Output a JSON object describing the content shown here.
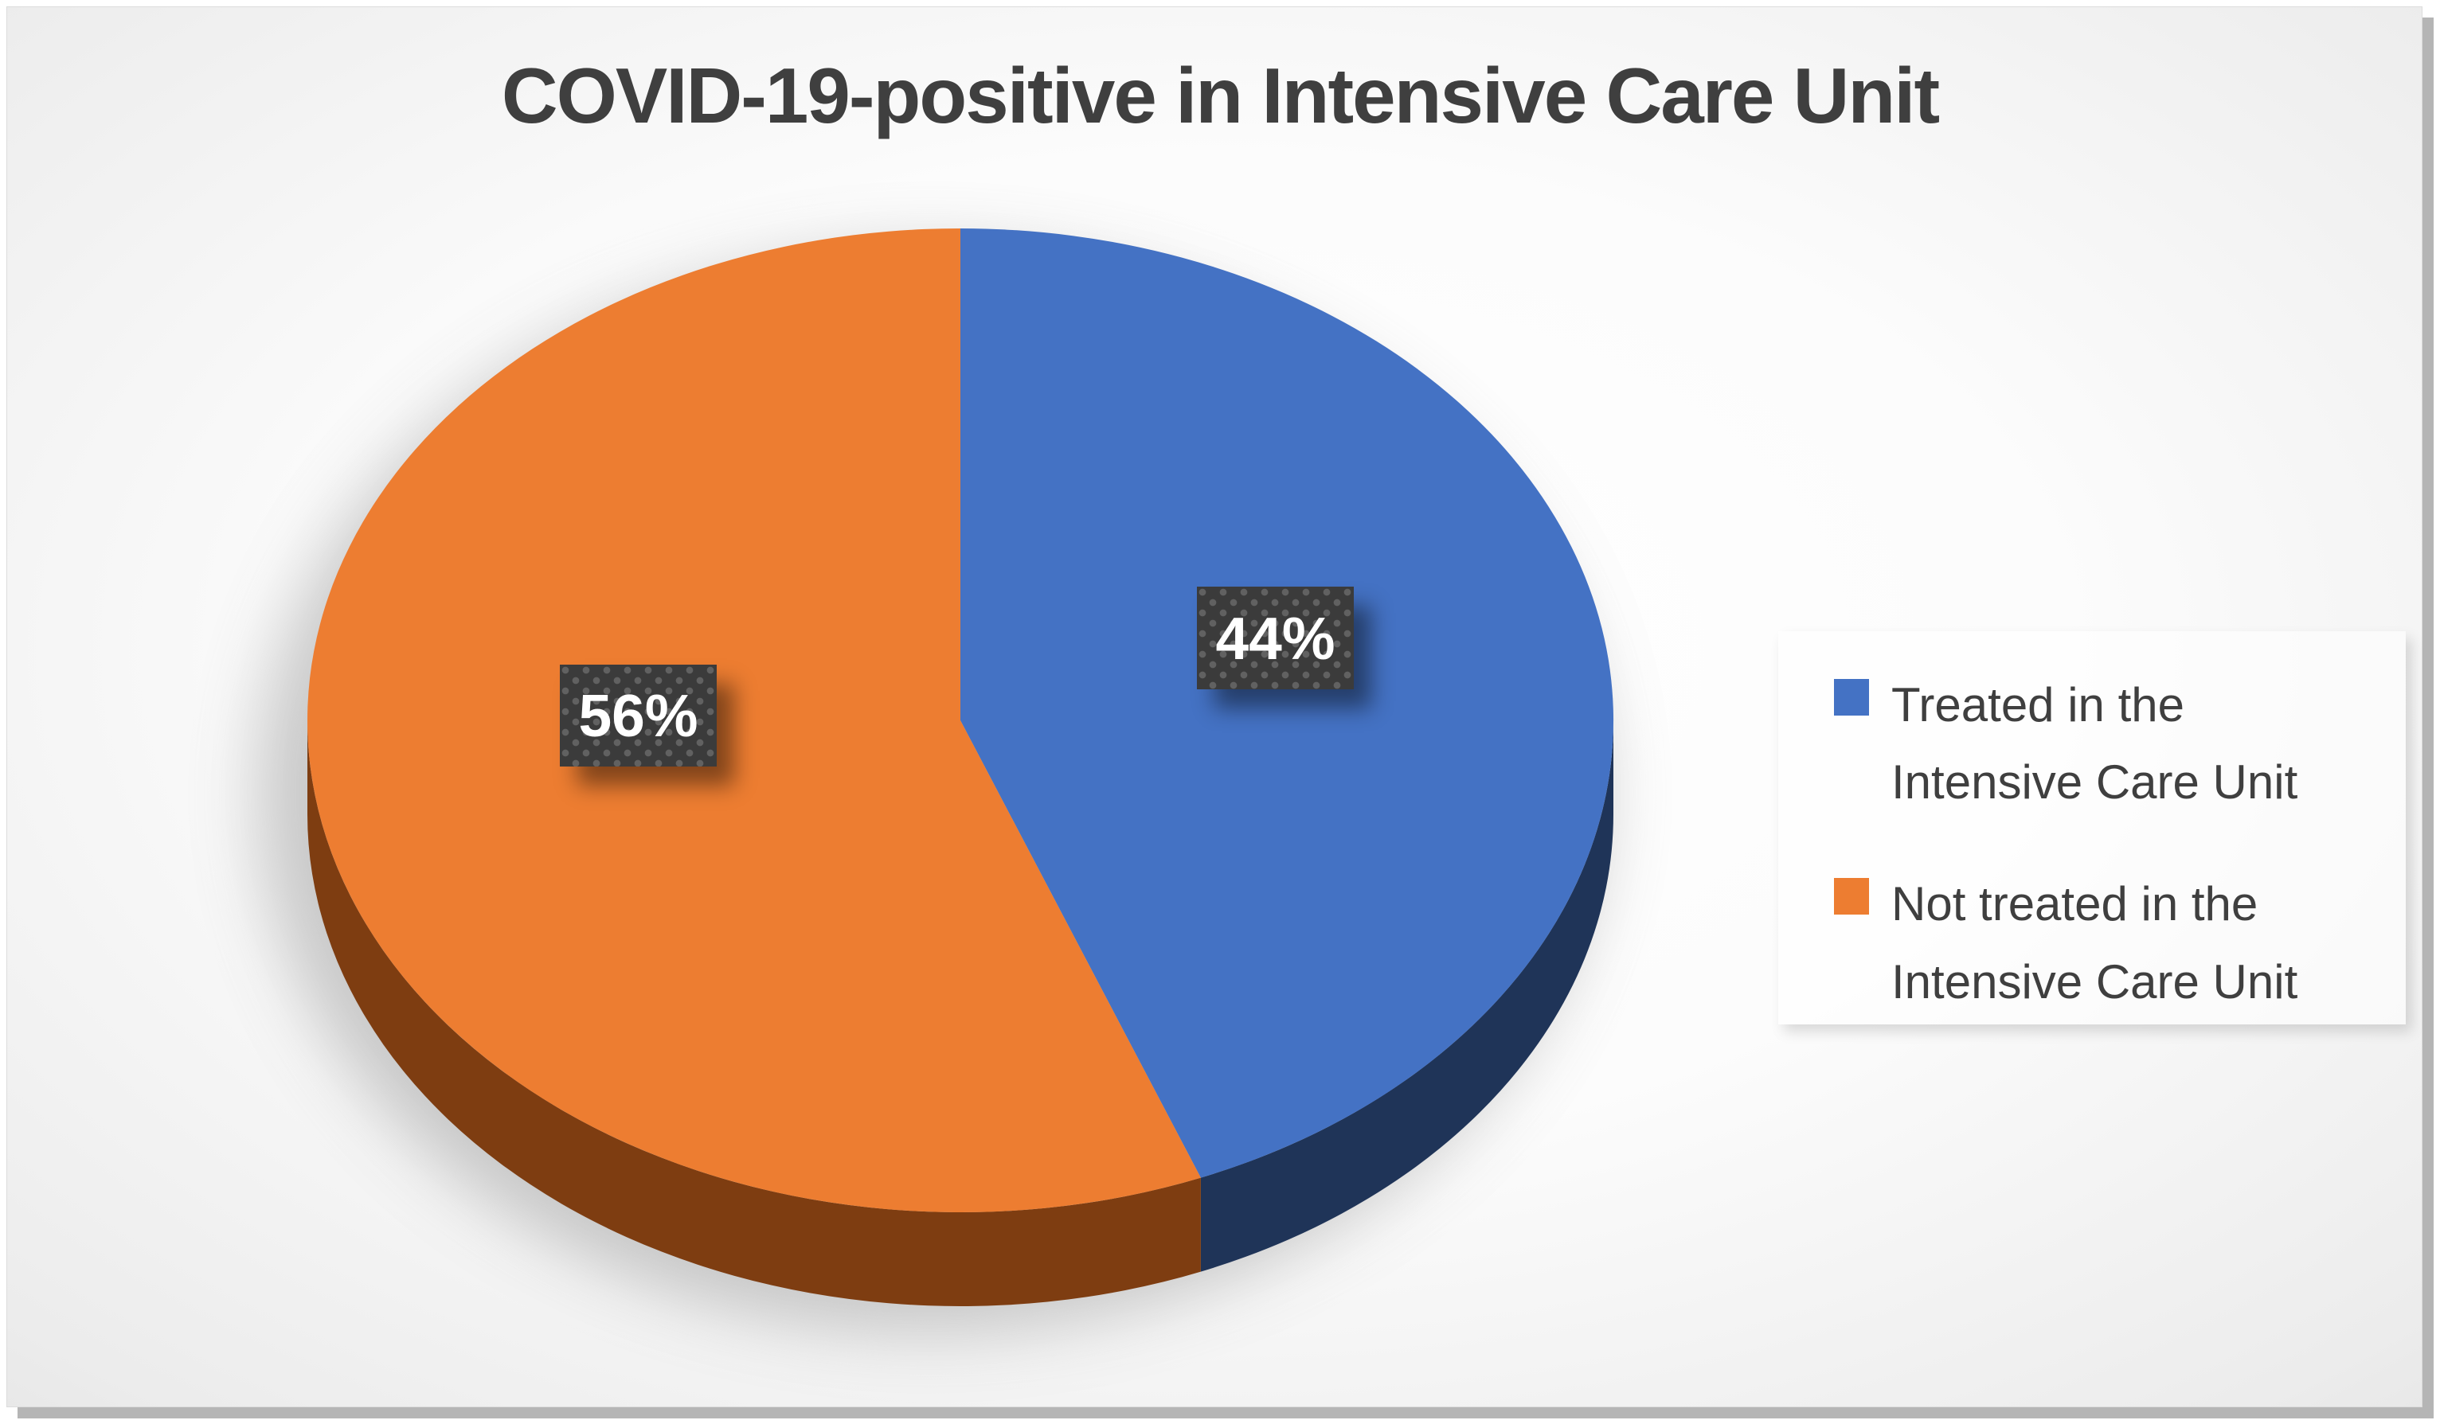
{
  "title": "COVID-19-positive in Intensive Care Unit",
  "chart_data": {
    "type": "pie",
    "style": "3d-pie",
    "title": "COVID-19-positive in Intensive Care Unit",
    "unit": "%",
    "start_angle_deg": -90,
    "direction": "clockwise",
    "legend_position": "right",
    "slices": [
      {
        "label": "Treated in the Intensive Care Unit",
        "value": 44,
        "pct_label": "44%",
        "color": "#4472C4",
        "side_color": "#1F3458"
      },
      {
        "label": "Not treated in the Intensive Care Unit",
        "value": 56,
        "pct_label": "56%",
        "color": "#ED7D31",
        "side_color": "#7E3D11"
      }
    ],
    "data_label_style": {
      "background": "#3B3B3B",
      "dot_pattern_color": "#616161",
      "text_color": "#FFFFFF"
    },
    "theme": {
      "title_color": "#3F3F3F",
      "legend_text_color": "#3F3F3F",
      "slide_corner_color": "#C2C2C2",
      "slide_center_color": "#FFFFFF"
    }
  }
}
